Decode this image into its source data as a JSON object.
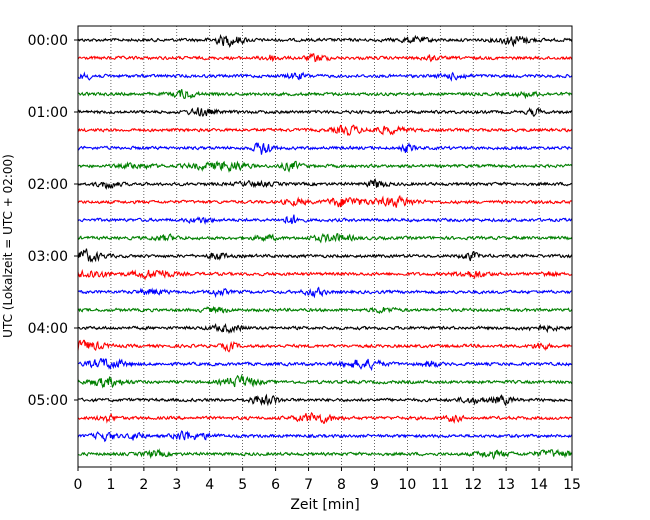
{
  "chart_data": {
    "type": "line",
    "title": "",
    "xlabel": "Zeit  [min]",
    "ylabel": "UTC (Lokalzeit = UTC + 02:00)",
    "xlim": [
      0,
      15
    ],
    "x_ticks": [
      0,
      1,
      2,
      3,
      4,
      5,
      6,
      7,
      8,
      9,
      10,
      11,
      12,
      13,
      14,
      15
    ],
    "x_tick_labels": [
      "0",
      "1",
      "2",
      "3",
      "4",
      "5",
      "6",
      "7",
      "8",
      "9",
      "10",
      "11",
      "12",
      "13",
      "14",
      "15"
    ],
    "y_ticks": [
      "00:00",
      "01:00",
      "02:00",
      "03:00",
      "04:00",
      "05:00"
    ],
    "grid": "vertical dotted",
    "trace_interval_min": 15,
    "trace_count": 24,
    "trace_colors": [
      "#000000",
      "#ff0000",
      "#0000ff",
      "#008000"
    ]
  }
}
